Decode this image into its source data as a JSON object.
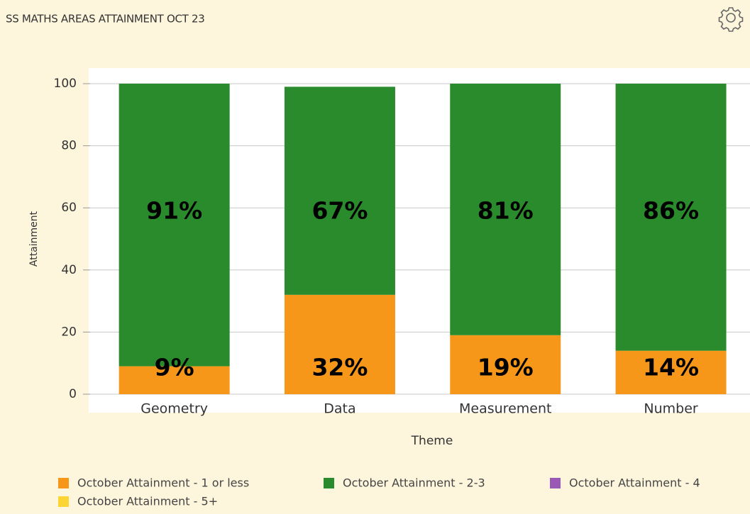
{
  "chart_data": {
    "type": "stacked_bar",
    "title": "SS MATHS AREAS ATTAINMENT OCT 23",
    "x_label": "Theme",
    "y_label": "Attainment",
    "categories": [
      "Geometry",
      "Data",
      "Measurement",
      "Number"
    ],
    "series": [
      {
        "name": "October Attainment - 1 or less",
        "color": "#f7971a",
        "values": [
          9,
          32,
          19,
          14
        ],
        "value_labels": [
          "9%",
          "32%",
          "19%",
          "14%"
        ]
      },
      {
        "name": "October Attainment - 2-3",
        "color": "#2a8b2c",
        "values": [
          91,
          67,
          81,
          86
        ],
        "value_labels": [
          "91%",
          "67%",
          "81%",
          "86%"
        ]
      },
      {
        "name": "October Attainment - 4",
        "color": "#9b59b6",
        "values": [
          null,
          null,
          null,
          null
        ]
      },
      {
        "name": "October Attainment - 5+",
        "color": "#fcd535",
        "values": [
          null,
          null,
          null,
          null
        ]
      }
    ],
    "ylim": [
      0,
      100
    ],
    "yticks": [
      0,
      20,
      40,
      60,
      80,
      100
    ],
    "grid": true
  }
}
